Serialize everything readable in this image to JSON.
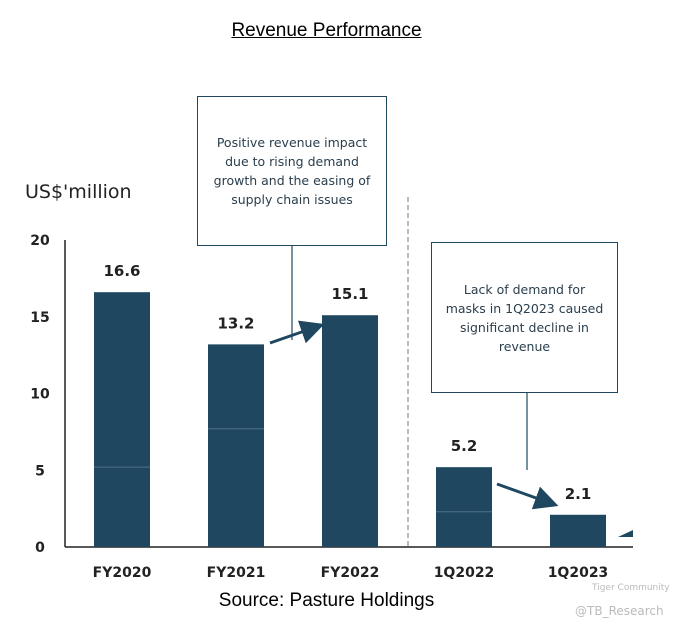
{
  "chart_data": {
    "type": "bar",
    "title": "Revenue Performance",
    "ylabel": "US$'million",
    "categories": [
      "FY2020",
      "FY2021",
      "FY2022",
      "1Q2022",
      "1Q2023"
    ],
    "values": [
      16.6,
      13.2,
      15.1,
      5.2,
      2.1
    ],
    "data_labels": [
      "16.6",
      "13.2",
      "15.1",
      "5.2",
      "2.1"
    ],
    "ylim": [
      0,
      20
    ],
    "yticks": [
      0,
      5,
      10,
      15,
      20
    ],
    "grid": false,
    "bar_color": "#1f4860",
    "annotations": [
      "Positive revenue impact due to rising demand growth and the easing of supply chain issues",
      "Lack of demand for masks in 1Q2023 caused significant decline in revenue"
    ]
  },
  "source": "Source: Pasture Holdings",
  "watermark": [
    "Tiger Community",
    "@TB_Research"
  ]
}
